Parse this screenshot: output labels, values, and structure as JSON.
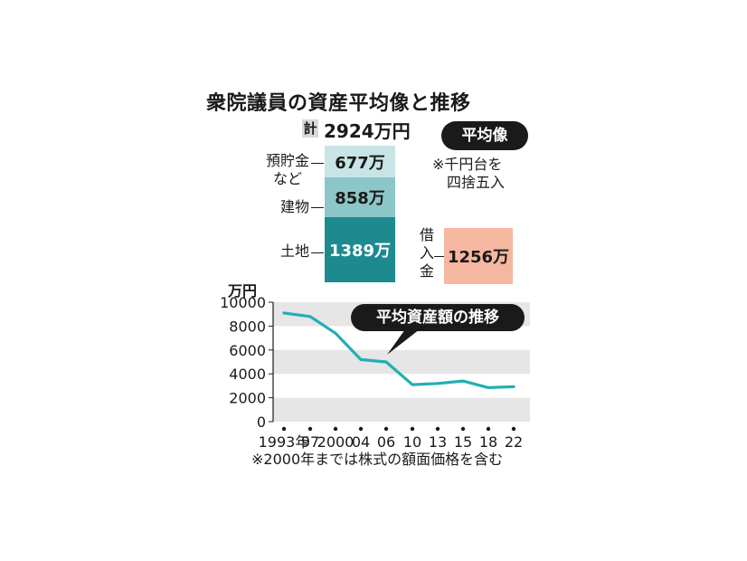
{
  "title": "衆院議員の資産平均像と推移",
  "total": {
    "label": "計",
    "value": "2924万円"
  },
  "average_badge": "平均像",
  "note_rounding": [
    "※千円台を",
    "四捨五入"
  ],
  "assets": [
    {
      "label": [
        "預貯金",
        "など"
      ],
      "value": "677万",
      "amount": 677,
      "color": "#c9e4e6",
      "text_color": "#1a1a1a"
    },
    {
      "label": [
        "建物"
      ],
      "value": "858万",
      "amount": 858,
      "color": "#8cc6c9",
      "text_color": "#1a1a1a"
    },
    {
      "label": [
        "土地"
      ],
      "value": "1389万",
      "amount": 1389,
      "color": "#1d8a90",
      "text_color": "#ffffff"
    }
  ],
  "debt": {
    "label": "借入金",
    "value": "1256万",
    "amount": 1256
  },
  "line_badge": "平均資産額の推移",
  "footnote": "※2000年までは株式の額面価格を含む",
  "chart_data": {
    "type": "line",
    "ylabel": "万円",
    "ylim": [
      0,
      10000
    ],
    "yticks": [
      "0",
      "2000",
      "4000",
      "6000",
      "8000",
      "10000"
    ],
    "xticklabels": [
      "1993年",
      "97",
      "2000",
      "04",
      "06",
      "10",
      "13",
      "15",
      "18",
      "22"
    ],
    "series": [
      {
        "values": [
          9100,
          8800,
          7400,
          5200,
          5000,
          3100,
          3200,
          3400,
          2850,
          2924
        ],
        "color": "#23aeb2"
      }
    ],
    "grid": "alternating bands"
  }
}
